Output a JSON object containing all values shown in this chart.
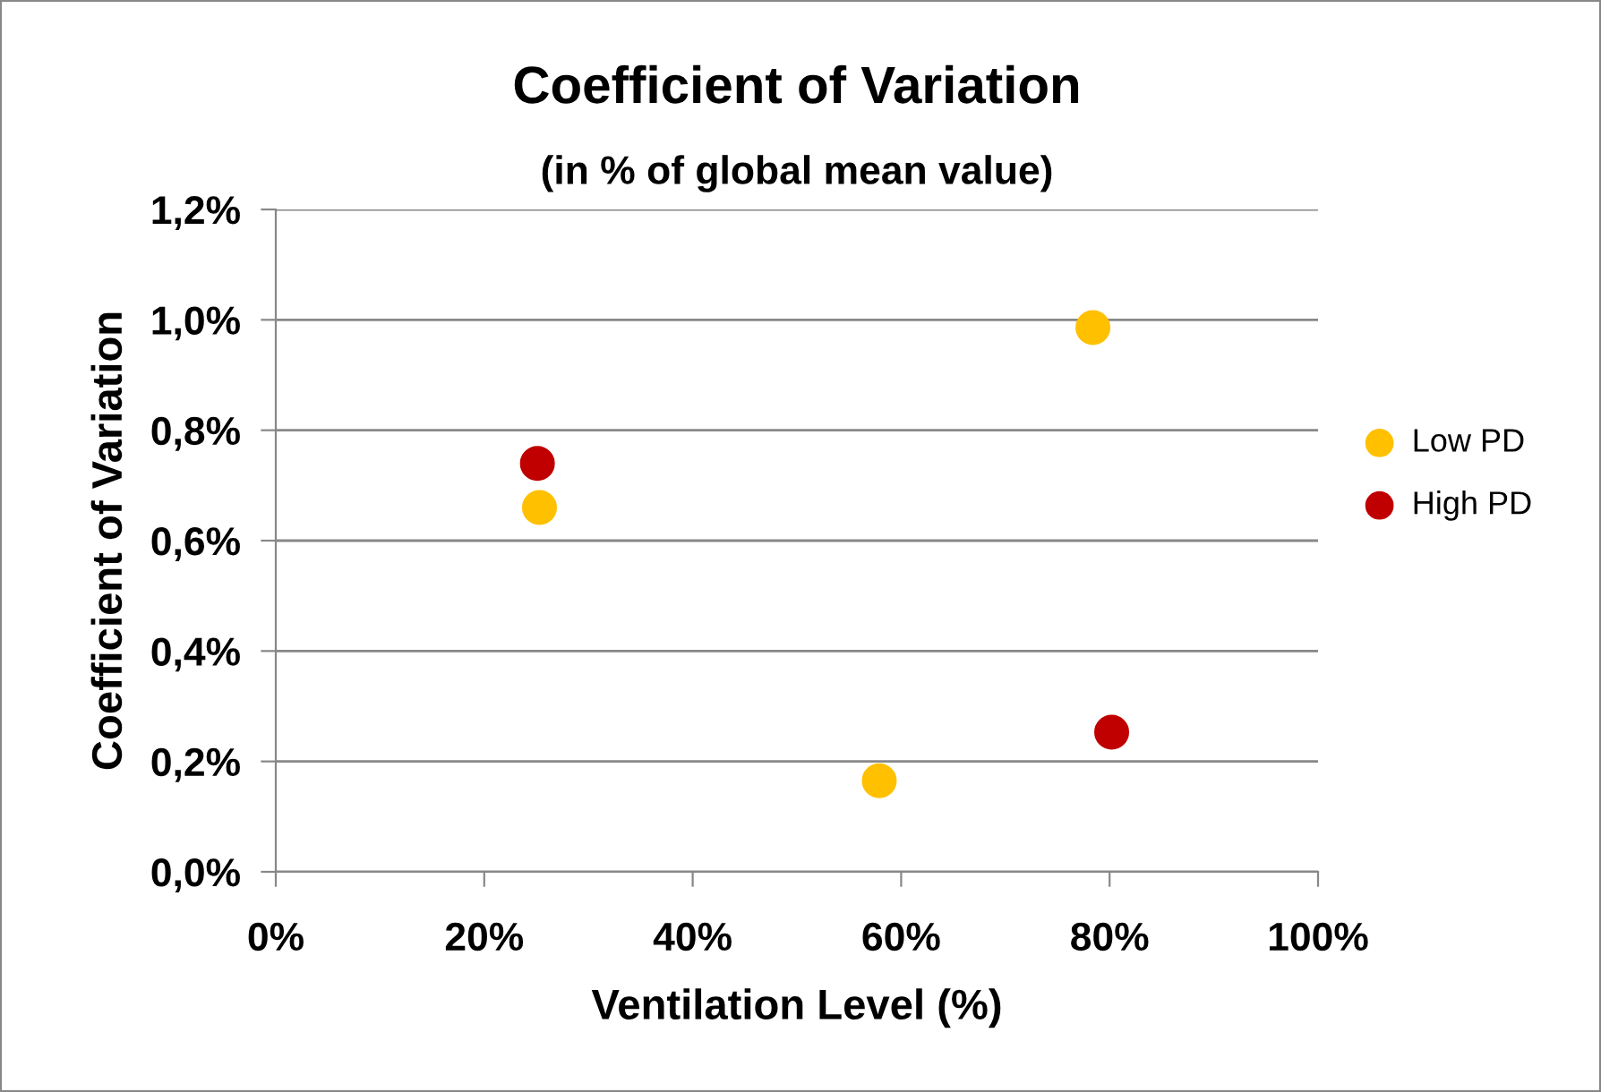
{
  "chart_data": {
    "type": "scatter",
    "title": "Coefficient of Variation",
    "subtitle": "(in % of global mean value)",
    "xlabel": "Ventilation Level (%)",
    "ylabel": "Coefficient of Variation",
    "series": [
      {
        "name": "Low PD",
        "color": "#ffc000",
        "x": [
          25.3,
          57.9,
          78.4
        ],
        "values": [
          0.66,
          0.165,
          0.986
        ]
      },
      {
        "name": "High PD",
        "color": "#c00000",
        "x": [
          25.1,
          80.2
        ],
        "values": [
          0.74,
          0.253
        ]
      }
    ],
    "xlim": [
      0,
      100
    ],
    "ylim": [
      0,
      1.2
    ],
    "xticks": [
      {
        "value": 0,
        "label": "0%"
      },
      {
        "value": 20,
        "label": "20%"
      },
      {
        "value": 40,
        "label": "40%"
      },
      {
        "value": 60,
        "label": "60%"
      },
      {
        "value": 80,
        "label": "80%"
      },
      {
        "value": 100,
        "label": "100%"
      }
    ],
    "yticks": [
      {
        "value": 0,
        "label": "0,0%"
      },
      {
        "value": 0.2,
        "label": "0,2%"
      },
      {
        "value": 0.4,
        "label": "0,4%"
      },
      {
        "value": 0.6,
        "label": "0,6%"
      },
      {
        "value": 0.8,
        "label": "0,8%"
      },
      {
        "value": 1.0,
        "label": "1,0%"
      },
      {
        "value": 1.2,
        "label": "1,2%"
      }
    ],
    "grid": "y",
    "legend": "right",
    "marker": "circle"
  }
}
